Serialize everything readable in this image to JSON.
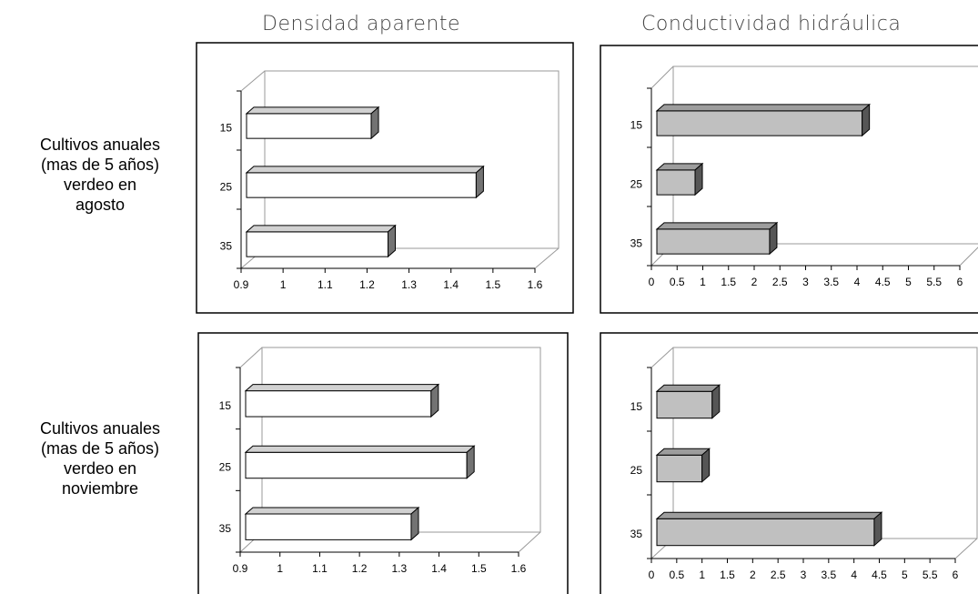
{
  "column_titles": [
    "Densidad aparente",
    "Conductividad hidráulica"
  ],
  "row_labels": [
    [
      "Cultivos anuales",
      "(mas de 5 años)",
      "verdeo en",
      "agosto"
    ],
    [
      "Cultivos anuales",
      "(mas de 5 años)",
      "verdeo en",
      "noviembre"
    ]
  ],
  "colors": {
    "density_bar": "#ffffff",
    "conductivity_bar": "#c0c0c0"
  },
  "chart_data": [
    {
      "type": "bar",
      "orientation": "horizontal",
      "title": "",
      "categories": [
        "15",
        "25",
        "35"
      ],
      "values": [
        1.21,
        1.46,
        1.25
      ],
      "xlim": [
        0.9,
        1.6
      ],
      "xticks": [
        "0.9",
        "1",
        "1.1",
        "1.2",
        "1.3",
        "1.4",
        "1.5",
        "1.6"
      ]
    },
    {
      "type": "bar",
      "orientation": "horizontal",
      "title": "",
      "categories": [
        "15",
        "25",
        "35"
      ],
      "values": [
        4.1,
        0.85,
        2.3
      ],
      "xlim": [
        0,
        6
      ],
      "xticks": [
        "0",
        "0.5",
        "1",
        "1.5",
        "2",
        "2.5",
        "3",
        "3.5",
        "4",
        "4.5",
        "5",
        "5.5",
        "6"
      ]
    },
    {
      "type": "bar",
      "orientation": "horizontal",
      "title": "",
      "categories": [
        "15",
        "25",
        "35"
      ],
      "values": [
        1.38,
        1.47,
        1.33
      ],
      "xlim": [
        0.9,
        1.6
      ],
      "xticks": [
        "0.9",
        "1",
        "1.1",
        "1.2",
        "1.3",
        "1.4",
        "1.5",
        "1.6"
      ]
    },
    {
      "type": "bar",
      "orientation": "horizontal",
      "title": "",
      "categories": [
        "15",
        "25",
        "35"
      ],
      "values": [
        1.2,
        1.0,
        4.4
      ],
      "xlim": [
        0,
        6
      ],
      "xticks": [
        "0",
        "0.5",
        "1",
        "1.5",
        "2",
        "2.5",
        "3",
        "3.5",
        "4",
        "4.5",
        "5",
        "5.5",
        "6"
      ]
    }
  ]
}
